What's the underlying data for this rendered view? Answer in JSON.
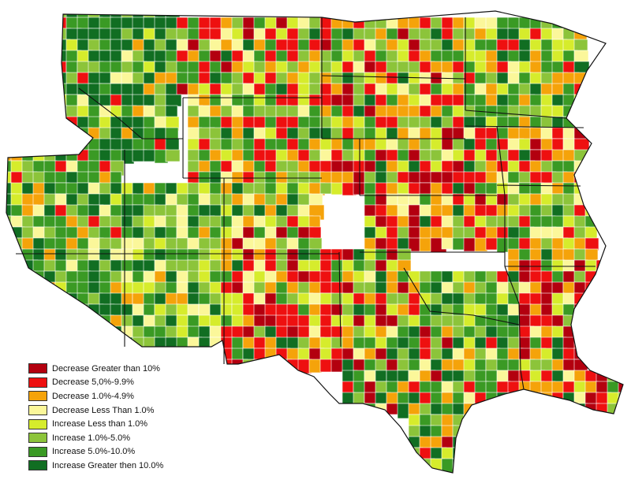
{
  "legend": {
    "items": [
      {
        "label": "Decrease Greater than 10%",
        "color": "#b3000f"
      },
      {
        "label": "Decrease 5,0%-9.9%",
        "color": "#ee1010"
      },
      {
        "label": "Decrease 1.0%-4.9%",
        "color": "#f5a30a"
      },
      {
        "label": "Decrease Less Than 1.0%",
        "color": "#fbf79a"
      },
      {
        "label": "Increase Less than 1.0%",
        "color": "#d6ec2c"
      },
      {
        "label": "Increase 1.0%-5.0%",
        "color": "#8cc43a"
      },
      {
        "label": "Increase 5.0%-10.0%",
        "color": "#3a9a24"
      },
      {
        "label": "Increase Greater then 10.0%",
        "color": "#116e22"
      }
    ]
  }
}
